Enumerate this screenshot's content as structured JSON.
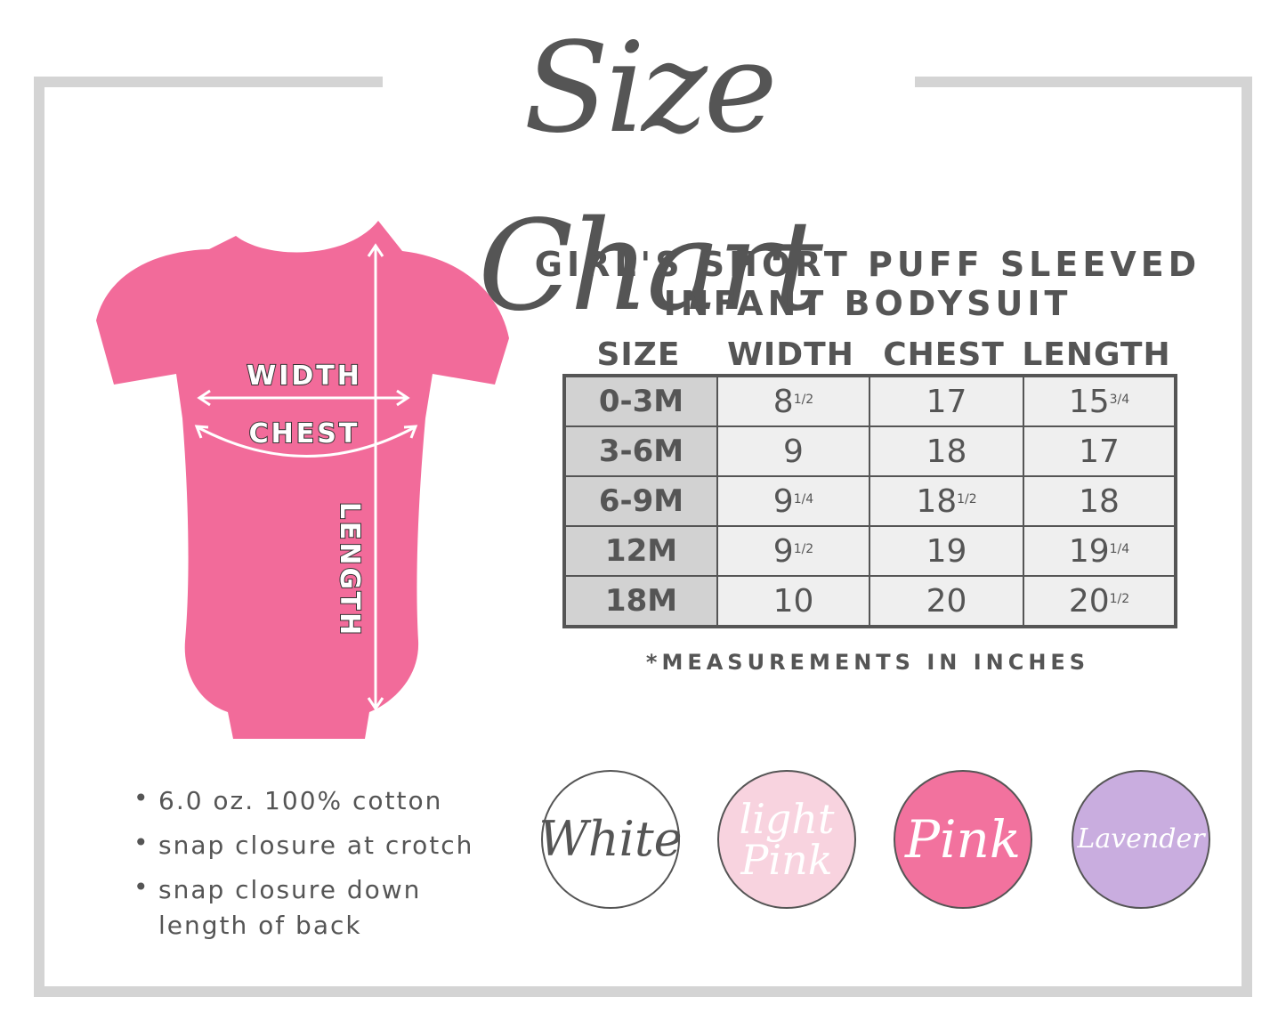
{
  "title": "Size Chart",
  "product": {
    "title_lines": [
      "GIRL'S SHORT PUFF SLEEVED",
      "INFANT BODYSUIT"
    ]
  },
  "diagram": {
    "labels": [
      "WIDTH",
      "CHEST",
      "LENGTH"
    ]
  },
  "table": {
    "header": [
      "SIZE",
      "WIDTH",
      "CHEST",
      "LENGTH"
    ],
    "rows": [
      [
        "0-3M",
        {
          "whole": "8",
          "fraction": "1/2"
        },
        "17",
        {
          "whole": "15",
          "fraction": "3/4"
        }
      ],
      [
        "3-6M",
        "9",
        "18",
        "17"
      ],
      [
        "6-9M",
        {
          "whole": "9",
          "fraction": "1/4"
        },
        {
          "whole": "18",
          "fraction": "1/2"
        },
        "18"
      ],
      [
        "12M",
        {
          "whole": "9",
          "fraction": "1/2"
        },
        "19",
        {
          "whole": "19",
          "fraction": "1/4"
        }
      ],
      [
        "18M",
        "10",
        "20",
        {
          "whole": "20",
          "fraction": "1/2"
        }
      ]
    ]
  },
  "note": "*MEASUREMENTS IN INCHES",
  "features": [
    [
      "6.0 oz. 100% cotton"
    ],
    [
      "snap closure at crotch"
    ],
    [
      "snap closure down",
      "length of back"
    ]
  ],
  "colors": [
    {
      "lines": [
        "White"
      ]
    },
    {
      "lines": [
        "light",
        "Pink"
      ]
    },
    {
      "lines": [
        "Pink"
      ]
    },
    {
      "lines": [
        "Lavender"
      ]
    }
  ]
}
